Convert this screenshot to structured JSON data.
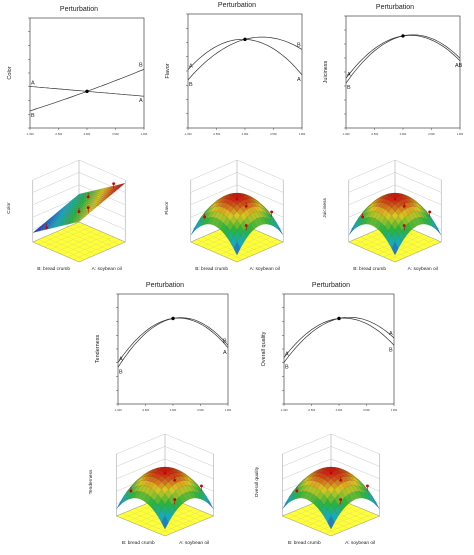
{
  "colors": {
    "axis": "#444444",
    "curve": "#333333",
    "point": "#000000",
    "red": "#cc0000",
    "floor": "#ffff33",
    "lowSurface": "#2a3fbf",
    "highSurface": "#cc1111"
  },
  "perturbation_plots": [
    {
      "title": "Perturbation",
      "ylabel": "Color",
      "x_ticks": [
        "-1.000",
        "-0.500",
        "0.000",
        "0.500",
        "1.000"
      ],
      "labels": [
        "A",
        "B",
        "A",
        "B"
      ]
    },
    {
      "title": "Perturbation",
      "ylabel": "Flavor",
      "x_ticks": [
        "-1.000",
        "-0.500",
        "0.000",
        "0.500",
        "1.000"
      ],
      "labels": [
        "A",
        "B",
        "A",
        "B"
      ]
    },
    {
      "title": "Perturbation",
      "ylabel": "Juiciness",
      "x_ticks": [
        "-1.000",
        "-0.500",
        "0.000",
        "0.500",
        "1.000"
      ],
      "labels": [
        "A",
        "B",
        "AB"
      ]
    },
    {
      "title": "Perturbation",
      "ylabel": "Tenderness",
      "x_ticks": [
        "-1.000",
        "-0.500",
        "0.000",
        "0.500",
        "1.000"
      ],
      "labels": [
        "A",
        "B",
        "A",
        "B"
      ]
    },
    {
      "title": "Perturbation",
      "ylabel": "Overall quality",
      "x_ticks": [
        "-1.000",
        "-0.500",
        "0.000",
        "0.500",
        "1.000"
      ],
      "labels": [
        "A",
        "B",
        "B",
        "A"
      ]
    }
  ],
  "surface_plots": [
    {
      "zlabel": "Color",
      "xlabel": "B: bread crumb",
      "ylabel": "A: soybean oil"
    },
    {
      "zlabel": "Flavor",
      "xlabel": "B: bread crumb",
      "ylabel": "A: soybean oil"
    },
    {
      "zlabel": "Juiciness",
      "xlabel": "B: bread crumb",
      "ylabel": "A: soybean oil"
    },
    {
      "zlabel": "Tenderness",
      "xlabel": "B: bread crumb",
      "ylabel": "A: soybean oil"
    },
    {
      "zlabel": "Overall quality",
      "xlabel": "B: bread crumb",
      "ylabel": "A: soybean oil"
    }
  ],
  "chart_data": [
    {
      "type": "line",
      "title": "Perturbation",
      "ylabel": "Color",
      "xlabel": "",
      "x": [
        -1,
        0,
        1
      ],
      "series": [
        {
          "name": "A",
          "values": [
            5.2,
            5.0,
            4.8
          ]
        },
        {
          "name": "B",
          "values": [
            4.2,
            5.0,
            5.9
          ]
        }
      ]
    },
    {
      "type": "line",
      "title": "Perturbation",
      "ylabel": "Flavor",
      "xlabel": "",
      "x": [
        -1,
        0,
        1
      ],
      "series": [
        {
          "name": "A",
          "values": [
            5.8,
            7.0,
            5.6
          ]
        },
        {
          "name": "B",
          "values": [
            5.4,
            7.0,
            6.6
          ]
        }
      ]
    },
    {
      "type": "line",
      "title": "Perturbation",
      "ylabel": "Juiciness",
      "xlabel": "",
      "x": [
        -1,
        0,
        1
      ],
      "series": [
        {
          "name": "A",
          "values": [
            5.5,
            7.2,
            6.2
          ]
        },
        {
          "name": "B",
          "values": [
            5.3,
            7.2,
            6.3
          ]
        }
      ]
    },
    {
      "type": "line",
      "title": "Perturbation",
      "ylabel": "Tenderness",
      "xlabel": "",
      "x": [
        -1,
        0,
        1
      ],
      "series": [
        {
          "name": "A",
          "values": [
            5.2,
            7.0,
            5.8
          ]
        },
        {
          "name": "B",
          "values": [
            5.0,
            7.0,
            5.9
          ]
        }
      ]
    },
    {
      "type": "line",
      "title": "Perturbation",
      "ylabel": "Overall quality",
      "xlabel": "",
      "x": [
        -1,
        0,
        1
      ],
      "series": [
        {
          "name": "A",
          "values": [
            5.4,
            7.0,
            5.9
          ]
        },
        {
          "name": "B",
          "values": [
            5.2,
            7.0,
            6.2
          ]
        }
      ]
    },
    {
      "type": "surface",
      "zlabel": "Color",
      "xlabel": "B: bread crumb",
      "ylabel": "A: soybean oil",
      "shape": "plane"
    },
    {
      "type": "surface",
      "zlabel": "Flavor",
      "xlabel": "B: bread crumb",
      "ylabel": "A: soybean oil",
      "shape": "dome"
    },
    {
      "type": "surface",
      "zlabel": "Juiciness",
      "xlabel": "B: bread crumb",
      "ylabel": "A: soybean oil",
      "shape": "dome"
    },
    {
      "type": "surface",
      "zlabel": "Tenderness",
      "xlabel": "B: bread crumb",
      "ylabel": "A: soybean oil",
      "shape": "dome"
    },
    {
      "type": "surface",
      "zlabel": "Overall quality",
      "xlabel": "B: bread crumb",
      "ylabel": "A: soybean oil",
      "shape": "dome"
    }
  ]
}
